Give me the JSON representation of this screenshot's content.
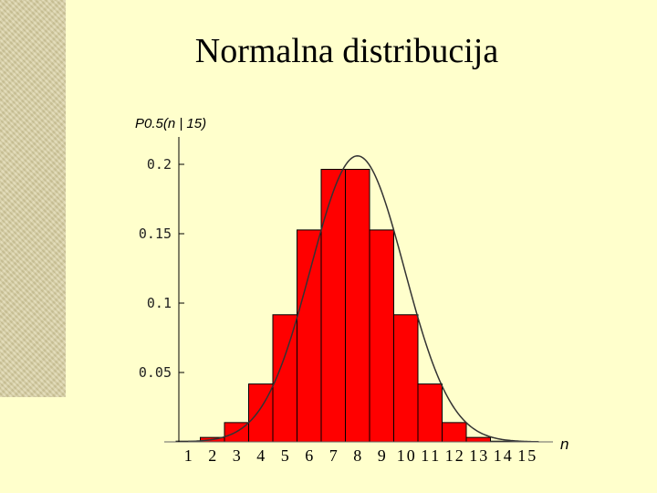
{
  "slide": {
    "title": "Normalna distribucija"
  },
  "chart_data": {
    "type": "bar",
    "ylabel": "P0.5(n | 15)",
    "xlabel": "n",
    "categories": [
      "1",
      "2",
      "3",
      "4",
      "5",
      "6",
      "7",
      "8",
      "9",
      "10",
      "11",
      "12",
      "13",
      "14",
      "15"
    ],
    "values": [
      0.0005,
      0.0032,
      0.0139,
      0.0417,
      0.0916,
      0.1527,
      0.1964,
      0.1964,
      0.1527,
      0.0916,
      0.0417,
      0.0139,
      0.0032,
      0.0005,
      0.0
    ],
    "yticks": [
      "0.05",
      "0.1",
      "0.15",
      "0.2"
    ],
    "ytick_values": [
      0.05,
      0.1,
      0.15,
      0.2
    ],
    "ylim": [
      0,
      0.21
    ],
    "curve": {
      "mean": 7.5,
      "sd": 1.936
    },
    "colors": {
      "bar_fill": "#ff0000",
      "bar_stroke": "#000000",
      "curve": "#333333"
    }
  }
}
